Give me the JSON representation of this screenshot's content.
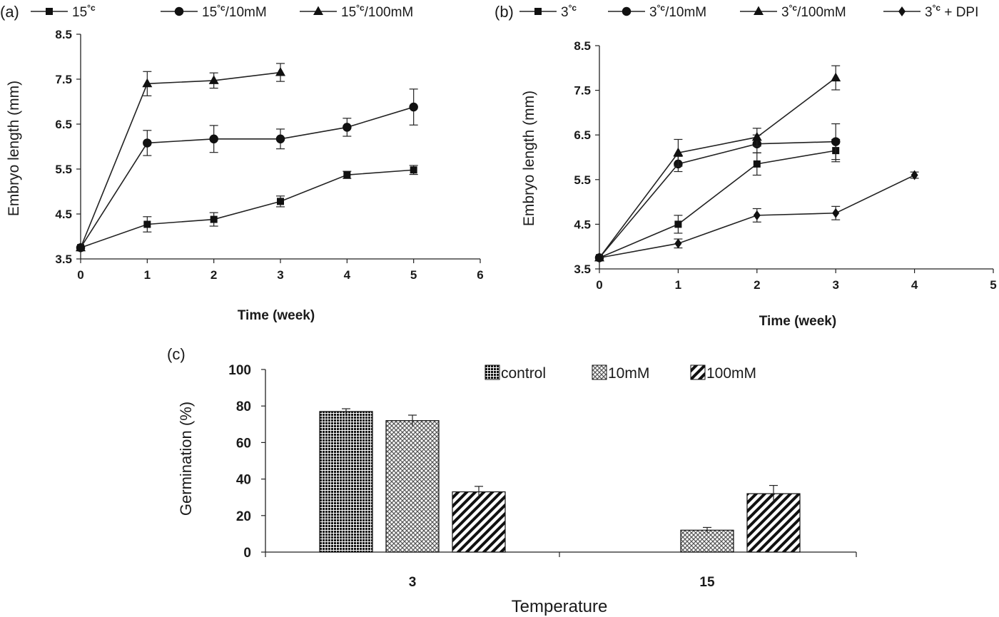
{
  "chart_data": [
    {
      "panel": "(a)",
      "type": "line",
      "xlabel": "Time (week)",
      "ylabel": "Embryo length (mm)",
      "xlim": [
        0,
        6
      ],
      "ylim": [
        3.5,
        8.5
      ],
      "xticks": [
        "0",
        "1",
        "2",
        "3",
        "4",
        "5",
        "6"
      ],
      "yticks": [
        "3.5",
        "4.5",
        "5.5",
        "6.5",
        "7.5",
        "8.5"
      ],
      "legend_position": "top",
      "series": [
        {
          "name": "15°c",
          "base": "15",
          "sup": "°c",
          "suffix": "",
          "marker": "square",
          "x": [
            0,
            1,
            2,
            3,
            4,
            5
          ],
          "values": [
            3.75,
            4.27,
            4.38,
            4.78,
            5.37,
            5.48
          ],
          "errors": [
            0.05,
            0.17,
            0.15,
            0.12,
            0.08,
            0.1
          ]
        },
        {
          "name": "15°c/10mM",
          "base": "15",
          "sup": "°c",
          "suffix": "/10mM",
          "marker": "circle",
          "x": [
            0,
            1,
            2,
            3,
            4,
            5
          ],
          "values": [
            3.75,
            6.08,
            6.17,
            6.17,
            6.43,
            6.88
          ],
          "errors": [
            0.05,
            0.28,
            0.3,
            0.22,
            0.2,
            0.4
          ]
        },
        {
          "name": "15°c/100mM",
          "base": "15",
          "sup": "°c",
          "suffix": "/100mM",
          "marker": "triangle",
          "x": [
            0,
            1,
            2,
            3
          ],
          "values": [
            3.75,
            7.4,
            7.47,
            7.65
          ],
          "errors": [
            0.05,
            0.27,
            0.17,
            0.2
          ]
        }
      ]
    },
    {
      "panel": "(b)",
      "type": "line",
      "xlabel": "Time (week)",
      "ylabel": "Embryo length (mm)",
      "xlim": [
        0,
        5
      ],
      "ylim": [
        3.5,
        8.5
      ],
      "xticks": [
        "0",
        "1",
        "2",
        "3",
        "4",
        "5"
      ],
      "yticks": [
        "3.5",
        "4.5",
        "5.5",
        "6.5",
        "7.5",
        "8.5"
      ],
      "legend_position": "top",
      "series": [
        {
          "name": "3°c",
          "base": "3",
          "sup": "°c",
          "suffix": "",
          "marker": "square",
          "x": [
            0,
            1,
            2,
            3
          ],
          "values": [
            3.75,
            4.5,
            5.85,
            6.15
          ],
          "errors": [
            0.05,
            0.2,
            0.25,
            0.25
          ]
        },
        {
          "name": "3°c/10mM",
          "base": "3",
          "sup": "°c",
          "suffix": "/10mM",
          "marker": "circle",
          "x": [
            0,
            1,
            2,
            3
          ],
          "values": [
            3.75,
            5.85,
            6.3,
            6.35
          ],
          "errors": [
            0.05,
            0.17,
            0.2,
            0.4
          ]
        },
        {
          "name": "3°c/100mM",
          "base": "3",
          "sup": "°c",
          "suffix": "/100mM",
          "marker": "triangle",
          "x": [
            0,
            1,
            2,
            3
          ],
          "values": [
            3.75,
            6.1,
            6.45,
            7.78
          ],
          "errors": [
            0.05,
            0.3,
            0.2,
            0.27
          ]
        },
        {
          "name": "3°c + DPI",
          "base": "3",
          "sup": "°c",
          "suffix": " + DPI",
          "marker": "diamond",
          "x": [
            0,
            1,
            2,
            3,
            4
          ],
          "values": [
            3.75,
            4.07,
            4.7,
            4.75,
            5.6
          ],
          "errors": [
            0.05,
            0.1,
            0.15,
            0.15,
            0.07
          ]
        }
      ]
    },
    {
      "panel": "(c)",
      "type": "bar",
      "xlabel": "Temperature",
      "ylabel": "Germination (%)",
      "ylim": [
        0,
        100
      ],
      "yticks": [
        "0",
        "20",
        "40",
        "60",
        "80",
        "100"
      ],
      "categories": [
        "3",
        "15"
      ],
      "legend_position": "top-right",
      "series": [
        {
          "name": "control",
          "pattern": "dots",
          "values": [
            77,
            0
          ],
          "errors": [
            1.5,
            0
          ]
        },
        {
          "name": "10mM",
          "pattern": "crosshatch",
          "values": [
            72,
            12
          ],
          "errors": [
            3,
            1.5
          ]
        },
        {
          "name": "100mM",
          "pattern": "diagonal",
          "values": [
            33,
            32
          ],
          "errors": [
            3,
            4.5
          ]
        }
      ]
    }
  ]
}
